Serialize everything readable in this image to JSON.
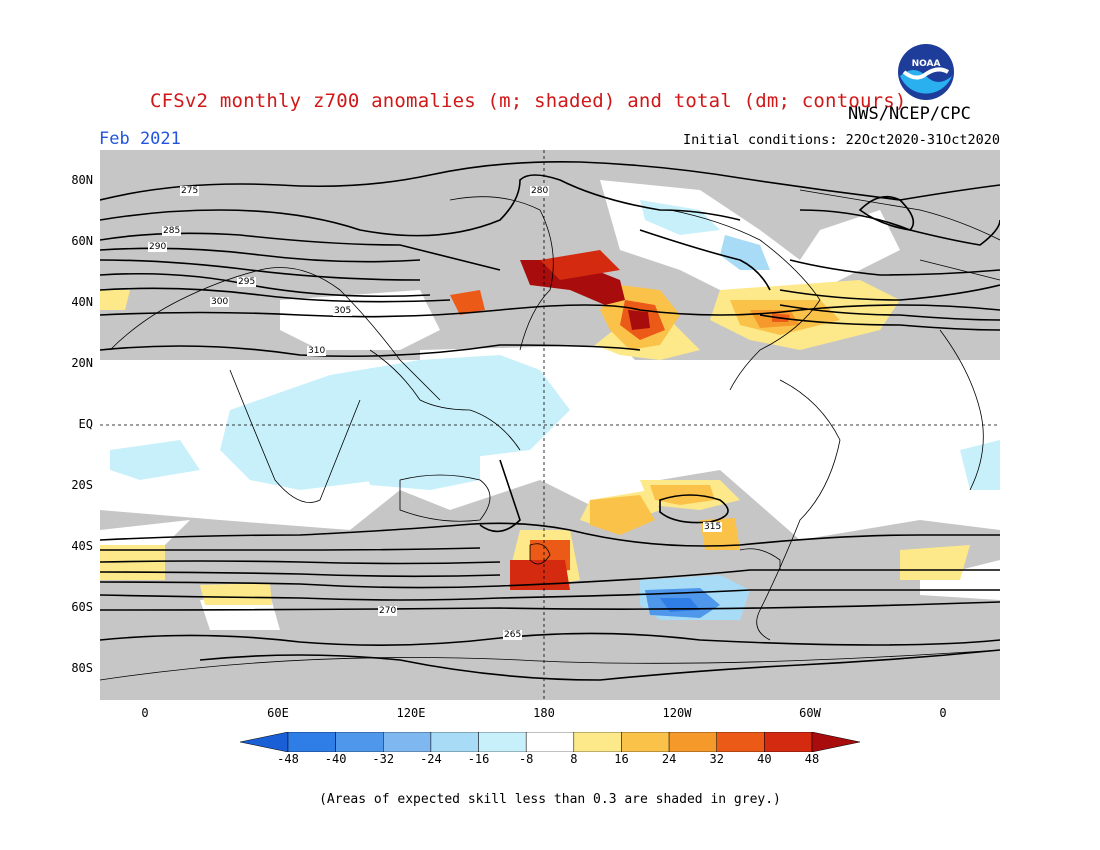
{
  "title": "CFSv2 monthly z700 anomalies (m; shaded) and total (dm; contours)",
  "organization": "NWS/NCEP/CPC",
  "logo_text": "NOAA",
  "forecast_month": "Feb 2021",
  "initial_conditions": "Initial conditions: 22Oct2020-31Oct2020",
  "footnote": "(Areas of expected skill less than 0.3 are shaded in grey.)",
  "map": {
    "lat_labels": [
      "80N",
      "60N",
      "40N",
      "20N",
      "EQ",
      "20S",
      "40S",
      "60S",
      "80S"
    ],
    "lon_labels": [
      "0",
      "60E",
      "120E",
      "180",
      "120W",
      "60W",
      "0"
    ],
    "contour_labels": [
      "275",
      "280",
      "285",
      "290",
      "295",
      "300",
      "305",
      "310",
      "315",
      "270",
      "265"
    ]
  },
  "colorbar": {
    "labels": [
      "-48",
      "-40",
      "-32",
      "-24",
      "-16",
      "-8",
      "8",
      "16",
      "24",
      "32",
      "40",
      "48"
    ],
    "colors": [
      "#1a5fd6",
      "#2f7de6",
      "#4f97ea",
      "#7fb8f0",
      "#a8dcf6",
      "#c8f0fa",
      "#ffffff",
      "#fde98a",
      "#fbc24a",
      "#f59a2a",
      "#ec5a18",
      "#d42a10",
      "#a80c0c"
    ],
    "skill_grey": "#c6c6c6"
  }
}
